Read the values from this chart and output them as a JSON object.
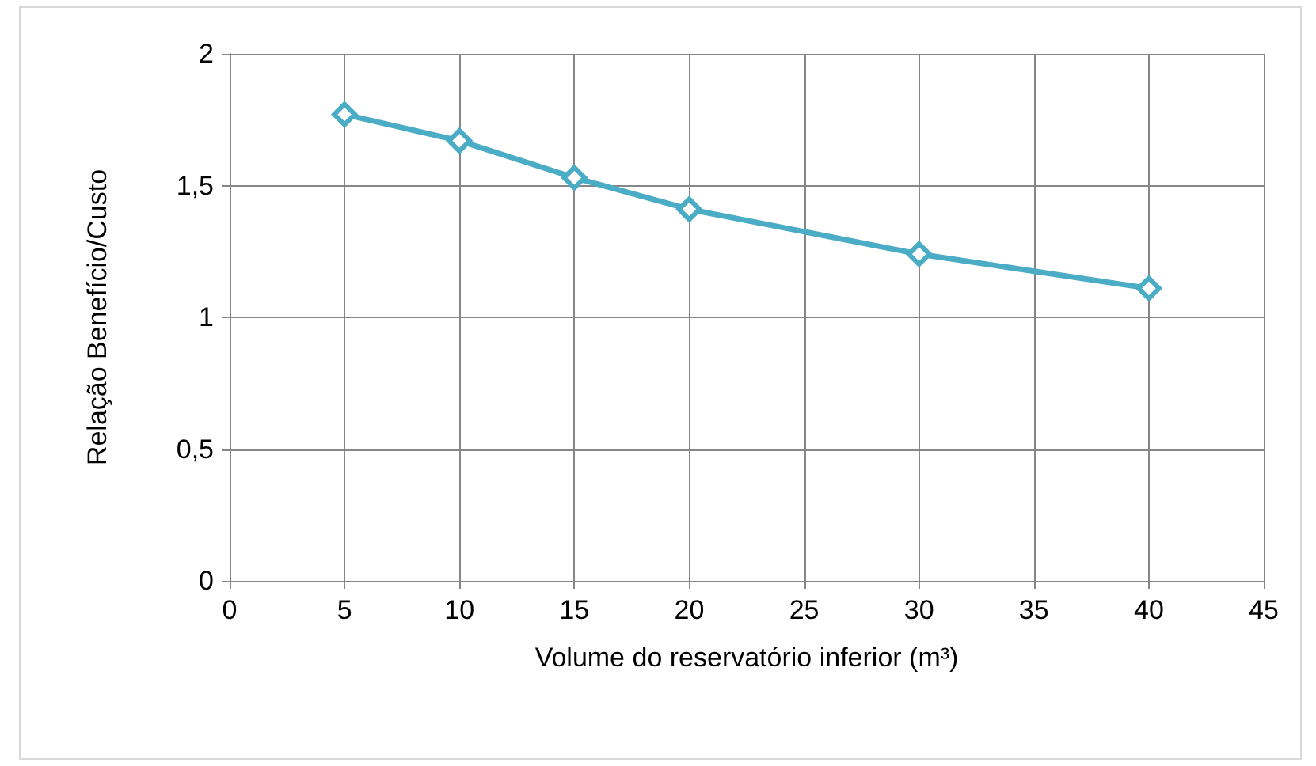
{
  "chart_data": {
    "type": "line",
    "xlabel": "Volume do reservatório inferior (m³)",
    "ylabel": "Relação Benefício/Custo",
    "x": [
      5,
      10,
      15,
      20,
      30,
      40
    ],
    "series": [
      {
        "color": "#4bacc6",
        "values": [
          1.77,
          1.67,
          1.53,
          1.41,
          1.24,
          1.11
        ]
      }
    ],
    "xlim": [
      0,
      45
    ],
    "xticks": [
      0,
      5,
      10,
      15,
      20,
      25,
      30,
      35,
      40,
      45
    ],
    "ylim": [
      0,
      2
    ],
    "yticks": [
      0,
      {
        "value": 0.5,
        "label": "0,5"
      },
      1,
      {
        "value": 1.5,
        "label": "1,5"
      },
      2
    ],
    "grid": true,
    "marker": "diamond",
    "line_style": "solid"
  }
}
